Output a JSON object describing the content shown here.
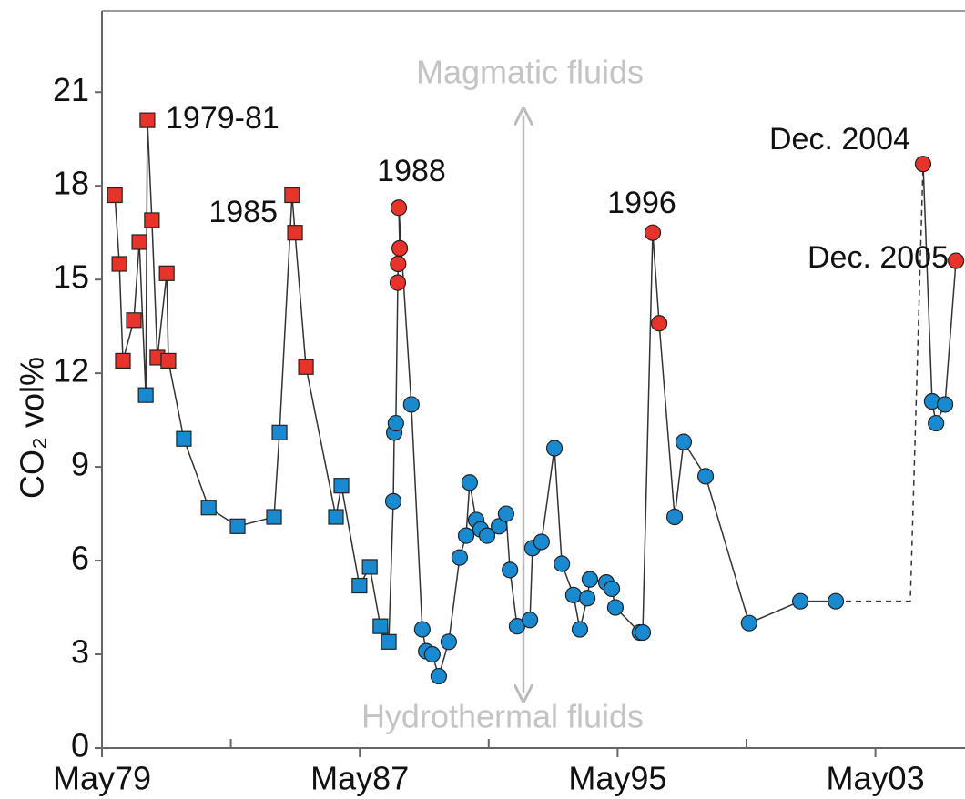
{
  "chart_data": {
    "type": "scatter",
    "y_label": "CO₂ vol%",
    "x": [
      1979.77,
      1979.91,
      1980.02,
      1980.36,
      1980.53,
      1980.73,
      1980.78,
      1980.92,
      1981.09,
      1981.38,
      1981.43,
      1981.91,
      1982.68,
      1983.58,
      1984.71,
      1984.88,
      1985.27,
      1985.36,
      1985.7,
      1986.63,
      1986.8,
      1987.36,
      1987.68,
      1988.01,
      1988.27,
      1988.41,
      1988.44,
      1988.49,
      1988.55,
      1988.56,
      1988.61,
      1988.58,
      1988.97,
      1989.31,
      1989.43,
      1989.62,
      1989.82,
      1990.13,
      1990.47,
      1990.67,
      1990.78,
      1990.98,
      1991.12,
      1991.32,
      1991.69,
      1991.91,
      1992.03,
      1992.25,
      1992.65,
      1992.73,
      1993.01,
      1993.41,
      1993.64,
      1994.0,
      1994.2,
      1994.43,
      1994.51,
      1995.02,
      1995.19,
      1995.3,
      1996.06,
      1996.15,
      1996.46,
      1996.66,
      1997.14,
      1997.42,
      1998.1,
      1999.45,
      2001.04,
      2002.14,
      2004.85,
      2005.13,
      2005.25,
      2005.53,
      2005.87
    ],
    "values": [
      17.7,
      15.5,
      12.4,
      13.7,
      16.2,
      11.3,
      20.1,
      16.9,
      12.5,
      15.2,
      12.4,
      9.9,
      7.7,
      7.1,
      7.4,
      10.1,
      17.7,
      16.5,
      12.2,
      7.4,
      8.4,
      5.2,
      5.8,
      3.9,
      3.4,
      7.9,
      10.1,
      10.4,
      14.9,
      15.5,
      16.0,
      17.3,
      11.0,
      3.8,
      3.1,
      3.0,
      2.3,
      3.4,
      6.1,
      6.8,
      8.5,
      7.3,
      7.0,
      6.8,
      7.1,
      7.5,
      5.7,
      3.9,
      4.1,
      6.4,
      6.6,
      9.6,
      5.9,
      4.9,
      3.8,
      4.8,
      5.4,
      5.3,
      5.1,
      4.5,
      3.7,
      3.7,
      16.5,
      13.6,
      7.4,
      9.8,
      8.7,
      4.0,
      4.7,
      4.7,
      18.7,
      11.1,
      10.4,
      11.0,
      15.6
    ],
    "colors": [
      "#e8332a",
      "#e8332a",
      "#e8332a",
      "#e8332a",
      "#e8332a",
      "#1a8ad0",
      "#e8332a",
      "#e8332a",
      "#e8332a",
      "#e8332a",
      "#e8332a",
      "#1a8ad0",
      "#1a8ad0",
      "#1a8ad0",
      "#1a8ad0",
      "#1a8ad0",
      "#e8332a",
      "#e8332a",
      "#e8332a",
      "#1a8ad0",
      "#1a8ad0",
      "#1a8ad0",
      "#1a8ad0",
      "#1a8ad0",
      "#1a8ad0",
      "#1a8ad0",
      "#1a8ad0",
      "#1a8ad0",
      "#e8332a",
      "#e8332a",
      "#e8332a",
      "#e8332a",
      "#1a8ad0",
      "#1a8ad0",
      "#1a8ad0",
      "#1a8ad0",
      "#1a8ad0",
      "#1a8ad0",
      "#1a8ad0",
      "#1a8ad0",
      "#1a8ad0",
      "#1a8ad0",
      "#1a8ad0",
      "#1a8ad0",
      "#1a8ad0",
      "#1a8ad0",
      "#1a8ad0",
      "#1a8ad0",
      "#1a8ad0",
      "#1a8ad0",
      "#1a8ad0",
      "#1a8ad0",
      "#1a8ad0",
      "#1a8ad0",
      "#1a8ad0",
      "#1a8ad0",
      "#1a8ad0",
      "#1a8ad0",
      "#1a8ad0",
      "#1a8ad0",
      "#1a8ad0",
      "#1a8ad0",
      "#e8332a",
      "#e8332a",
      "#1a8ad0",
      "#1a8ad0",
      "#1a8ad0",
      "#1a8ad0",
      "#1a8ad0",
      "#1a8ad0",
      "#e8332a",
      "#1a8ad0",
      "#1a8ad0",
      "#1a8ad0",
      "#e8332a"
    ],
    "markers": [
      "square",
      "square",
      "square",
      "square",
      "square",
      "square",
      "square",
      "square",
      "square",
      "square",
      "square",
      "square",
      "square",
      "square",
      "square",
      "square",
      "square",
      "square",
      "square",
      "square",
      "square",
      "square",
      "square",
      "square",
      "square",
      "circle",
      "circle",
      "circle",
      "circle",
      "circle",
      "circle",
      "circle",
      "circle",
      "circle",
      "circle",
      "circle",
      "circle",
      "circle",
      "circle",
      "circle",
      "circle",
      "circle",
      "circle",
      "circle",
      "circle",
      "circle",
      "circle",
      "circle",
      "circle",
      "circle",
      "circle",
      "circle",
      "circle",
      "circle",
      "circle",
      "circle",
      "circle",
      "circle",
      "circle",
      "circle",
      "circle",
      "circle",
      "circle",
      "circle",
      "circle",
      "circle",
      "circle",
      "circle",
      "circle",
      "circle",
      "circle",
      "circle",
      "circle",
      "circle",
      "circle"
    ],
    "dashed_after": 69,
    "xlim": [
      1979.37,
      2006.15
    ],
    "xticks": [
      {
        "value": 1979.37,
        "label": "May79"
      },
      {
        "value": 1987.37,
        "label": "May87"
      },
      {
        "value": 1995.37,
        "label": "May95"
      },
      {
        "value": 2003.37,
        "label": "May03"
      }
    ],
    "xminorticks": [
      1983.37,
      1991.37,
      1999.37
    ],
    "ylim": [
      0,
      23.6
    ],
    "yticks": [
      0,
      3,
      6,
      9,
      12,
      15,
      18,
      21
    ],
    "annotations": [
      "1979-81",
      "1985",
      "1988",
      "1996",
      "Dec. 2004",
      "Dec. 2005"
    ],
    "arrow_labels": [
      "Magmatic fluids",
      "Hydrothermal fluids"
    ]
  }
}
